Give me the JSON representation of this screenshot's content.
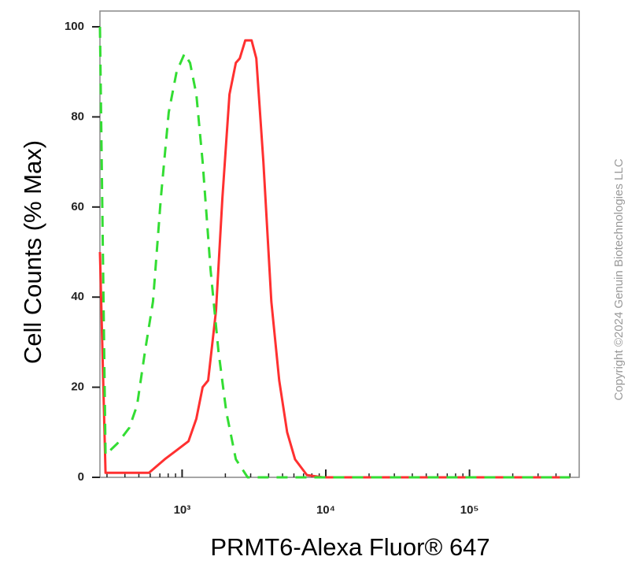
{
  "chart_data": {
    "type": "histogram-overlay",
    "x_label": "PRMT6-Alexa Fluor® 647",
    "y_label": "Cell Counts (% Max)",
    "copyright": "Copyright ©2024 Genuin Biotechnologies LLC",
    "xscale": "log",
    "xlim": [
      268,
      580000
    ],
    "ylim": [
      0,
      103.5
    ],
    "xticks": [
      {
        "value": 1000,
        "label": "10³"
      },
      {
        "value": 10000,
        "label": "10⁴"
      },
      {
        "value": 100000,
        "label": "10⁵"
      }
    ],
    "xminor": [
      300,
      400,
      500,
      600,
      700,
      800,
      900,
      2000,
      3000,
      4000,
      5000,
      6000,
      7000,
      8000,
      9000,
      20000,
      30000,
      40000,
      50000,
      60000,
      70000,
      80000,
      90000,
      200000,
      300000,
      400000,
      500000
    ],
    "yticks": [
      0,
      20,
      40,
      60,
      80,
      100
    ],
    "series": [
      {
        "color": "#ff3030",
        "dash": false,
        "x": [
          268,
          293,
          354,
          588,
          757,
          915,
          1107,
          1256,
          1390,
          1518,
          1722,
          1906,
          2136,
          2365,
          2520,
          2753,
          3045,
          3283,
          3680,
          4177,
          4742,
          5383,
          6109,
          7385,
          9508,
          500000
        ],
        "values": [
          50,
          1,
          1,
          1,
          4,
          6,
          8,
          13,
          20,
          21.5,
          37,
          62,
          85,
          92,
          93,
          97,
          97,
          93,
          70,
          39,
          21.5,
          10,
          4,
          0.5,
          0,
          0
        ]
      },
      {
        "color": "#33dd33",
        "dash": true,
        "x": [
          268,
          293,
          354,
          429,
          486,
          552,
          627,
          711,
          807,
          915,
          1038,
          1135,
          1256,
          1390,
          1578,
          1791,
          2032,
          2365,
          2857,
          500000
        ],
        "values": [
          100,
          5,
          7.5,
          11,
          16,
          28,
          39,
          62,
          81,
          90,
          94,
          92,
          85,
          70,
          46,
          28,
          14.5,
          4,
          0,
          0
        ]
      }
    ]
  }
}
